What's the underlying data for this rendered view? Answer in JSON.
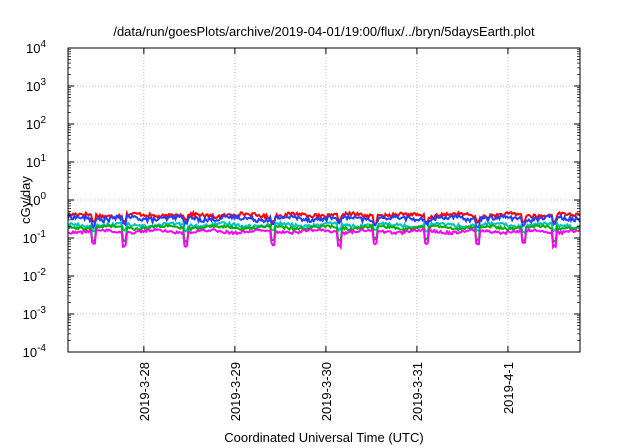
{
  "chart_data": {
    "type": "line",
    "title": "/data/run/goesPlots/archive/2019-04-01/19:00/flux/../bryn/5daysEarth.plot",
    "xlabel": "Coordinated Universal Time (UTC)",
    "ylabel": "cGy/day",
    "y_scale": "log",
    "ylim": [
      0.0001,
      10000
    ],
    "xlim": [
      "2019-03-27 04:00",
      "2019-04-01 19:00"
    ],
    "grid": true,
    "legend": "none",
    "x_ticks": [
      "2019-3-28",
      "2019-3-29",
      "2019-3-30",
      "2019-3-31",
      "2019-4-1"
    ],
    "y_ticks": [
      {
        "base": "10",
        "exp": "-4"
      },
      {
        "base": "10",
        "exp": "-3"
      },
      {
        "base": "10",
        "exp": "-2"
      },
      {
        "base": "10",
        "exp": "-1"
      },
      {
        "base": "10",
        "exp": "0"
      },
      {
        "base": "10",
        "exp": "1"
      },
      {
        "base": "10",
        "exp": "2"
      },
      {
        "base": "10",
        "exp": "3"
      },
      {
        "base": "10",
        "exp": "4"
      }
    ],
    "series": [
      {
        "color": "#ff0000",
        "level": 0.4,
        "noise": 0.12
      },
      {
        "color": "#2040ff",
        "level": 0.33,
        "noise": 0.14
      },
      {
        "color": "#00c0c0",
        "level": 0.22,
        "noise": 0.1
      },
      {
        "color": "#00b000",
        "level": 0.19,
        "noise": 0.08
      },
      {
        "color": "#ff00ff",
        "level": 0.15,
        "noise": 0.08
      }
    ]
  }
}
